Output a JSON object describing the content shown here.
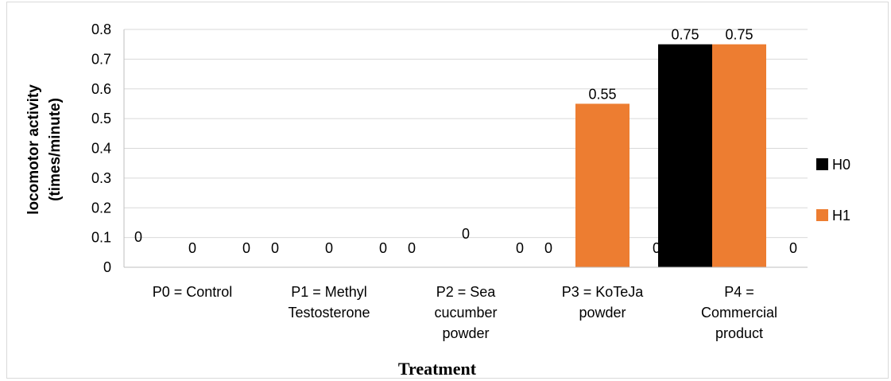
{
  "chart_data": {
    "type": "bar",
    "categories": [
      [
        "P0 = Control"
      ],
      [
        "P1 = Methyl",
        "Testosterone"
      ],
      [
        "P2 = Sea",
        "cucumber",
        "powder"
      ],
      [
        "P3 = KoTeJa",
        "powder"
      ],
      [
        "P4 =",
        "Commercial",
        "product"
      ]
    ],
    "series": [
      {
        "name": "H0",
        "color": "#000000",
        "values": [
          0,
          0,
          0,
          0,
          0.75
        ]
      },
      {
        "name": "H1",
        "color": "#ed7d31",
        "values": [
          0,
          0,
          0,
          0.55,
          0.75
        ]
      },
      {
        "name": "",
        "color": "#4472c4",
        "values": [
          0,
          0,
          0,
          0,
          0
        ]
      }
    ],
    "data_labels": [
      [
        "0",
        "0",
        "0",
        "0",
        "0.75"
      ],
      [
        "0",
        "0",
        "0",
        "0.55",
        "0.75"
      ],
      [
        "0",
        "0",
        "0",
        "0",
        "0"
      ]
    ],
    "ylim": [
      0,
      0.8
    ],
    "yticks": [
      "0",
      "0.1",
      "0.2",
      "0.3",
      "0.4",
      "0.5",
      "0.6",
      "0.7",
      "0.8"
    ],
    "ylabel_lines": [
      "locomotor activity",
      "(times/minute)"
    ],
    "xlabel": "Treatment",
    "grid": true,
    "legend_position": "right",
    "legend": [
      "H0",
      "H1"
    ]
  }
}
